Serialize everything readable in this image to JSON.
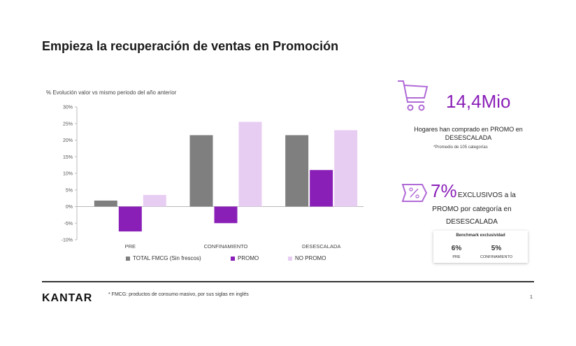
{
  "page": {
    "title": "Empieza la recuperación de ventas en Promoción",
    "page_number": "1",
    "footnote": "* FMCG: productos de consumo masivo, por sus siglas en inglés",
    "logo_text": "KANTAR"
  },
  "chart_data": {
    "type": "bar",
    "subtitle": "% Evolución valor vs mismo periodo del año anterior",
    "categories": [
      "PRE",
      "CONFINAMIENTO",
      "DESESCALADA"
    ],
    "series": [
      {
        "name": "TOTAL FMCG (Sin frescos)",
        "values": [
          1.8,
          21.5,
          21.5
        ],
        "color": "#7f7f7f"
      },
      {
        "name": "PROMO",
        "values": [
          -7.5,
          -5.0,
          11.0
        ],
        "color": "#8a1fb8"
      },
      {
        "name": "NO PROMO",
        "values": [
          3.5,
          25.5,
          23.0
        ],
        "color": "#e8cdf3"
      }
    ],
    "ylim": [
      -10,
      30
    ],
    "yticks": [
      "-10%",
      "-5%",
      "0%",
      "5%",
      "10%",
      "15%",
      "20%",
      "25%",
      "30%"
    ],
    "grid": false,
    "legend": "bottom"
  },
  "stats": {
    "households_value": "14,4Mio",
    "households_text_line1": "Hogares han comprado en PROMO en",
    "households_text_line2": "DESESCALADA",
    "households_note": "*Promedio de 105 categorías",
    "exclusive_value": "7%",
    "exclusive_line1": "EXCLUSIVOS a la",
    "exclusive_line2": "PROMO por categoría en",
    "exclusive_line3": "DESESCALADA",
    "cart_icon": "shopping-cart-icon",
    "discount_icon": "percent-tag-icon",
    "accent_color": "#8a1fb8"
  },
  "benchmark": {
    "title": "Benchmark exclusividad",
    "items": [
      {
        "value": "6%",
        "label": "PRE"
      },
      {
        "value": "5%",
        "label": "CONFINAMIENTO"
      }
    ]
  }
}
